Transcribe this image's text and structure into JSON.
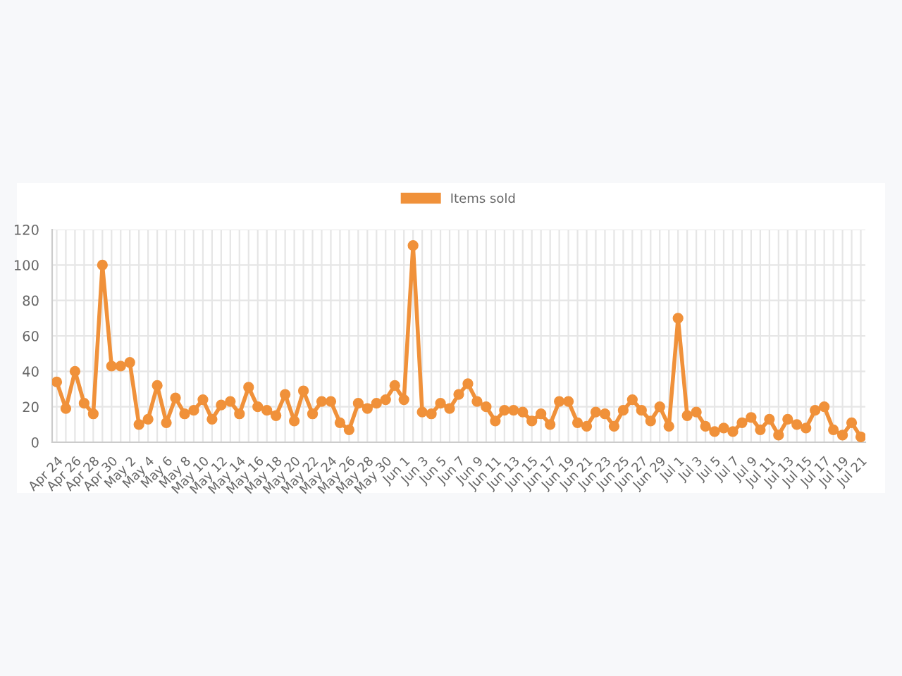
{
  "chart_data": {
    "type": "line",
    "categories": [
      "Apr 24",
      null,
      "Apr 26",
      null,
      "Apr 28",
      null,
      "Apr 30",
      null,
      "May 2",
      null,
      "May 4",
      null,
      "May 6",
      null,
      "May 8",
      null,
      "May 10",
      null,
      "May 12",
      null,
      "May 14",
      null,
      "May 16",
      null,
      "May 18",
      null,
      "May 20",
      null,
      "May 22",
      null,
      "May 24",
      null,
      "May 26",
      null,
      "May 28",
      null,
      "May 30",
      null,
      "Jun 1",
      null,
      "Jun 3",
      null,
      "Jun 5",
      null,
      "Jun 7",
      null,
      "Jun 9",
      null,
      "Jun 11",
      null,
      "Jun 13",
      null,
      "Jun 15",
      null,
      "Jun 17",
      null,
      "Jun 19",
      null,
      "Jun 21",
      null,
      "Jun 23",
      null,
      "Jun 25",
      null,
      "Jun 27",
      null,
      "Jun 29",
      null,
      "Jul 1",
      null,
      "Jul 3",
      null,
      "Jul 5",
      null,
      "Jul 7",
      null,
      "Jul 9",
      null,
      "Jul 11",
      null,
      "Jul 13",
      null,
      "Jul 15",
      null,
      "Jul 17",
      null,
      "Jul 19",
      null,
      "Jul 21"
    ],
    "series": [
      {
        "name": "Items sold",
        "color": "#f0913a",
        "values": [
          34,
          19,
          40,
          22,
          16,
          100,
          43,
          43,
          45,
          10,
          13,
          32,
          11,
          25,
          16,
          18,
          24,
          13,
          21,
          23,
          16,
          31,
          20,
          18,
          15,
          27,
          12,
          29,
          16,
          23,
          23,
          11,
          7,
          22,
          19,
          22,
          24,
          32,
          24,
          111,
          17,
          16,
          22,
          19,
          27,
          33,
          23,
          20,
          12,
          18,
          18,
          17,
          12,
          16,
          10,
          23,
          23,
          11,
          9,
          17,
          16,
          9,
          18,
          24,
          18,
          12,
          20,
          9,
          70,
          15,
          17,
          9,
          6,
          8,
          6,
          11,
          14,
          7,
          13,
          4,
          13,
          10,
          8,
          18,
          20,
          7,
          4,
          11,
          3
        ]
      }
    ],
    "ylim": [
      0,
      120
    ],
    "yticks": [
      0,
      20,
      40,
      60,
      80,
      100,
      120
    ],
    "grid": true,
    "legend": "top",
    "marker": "circle",
    "line_style": "solid"
  }
}
